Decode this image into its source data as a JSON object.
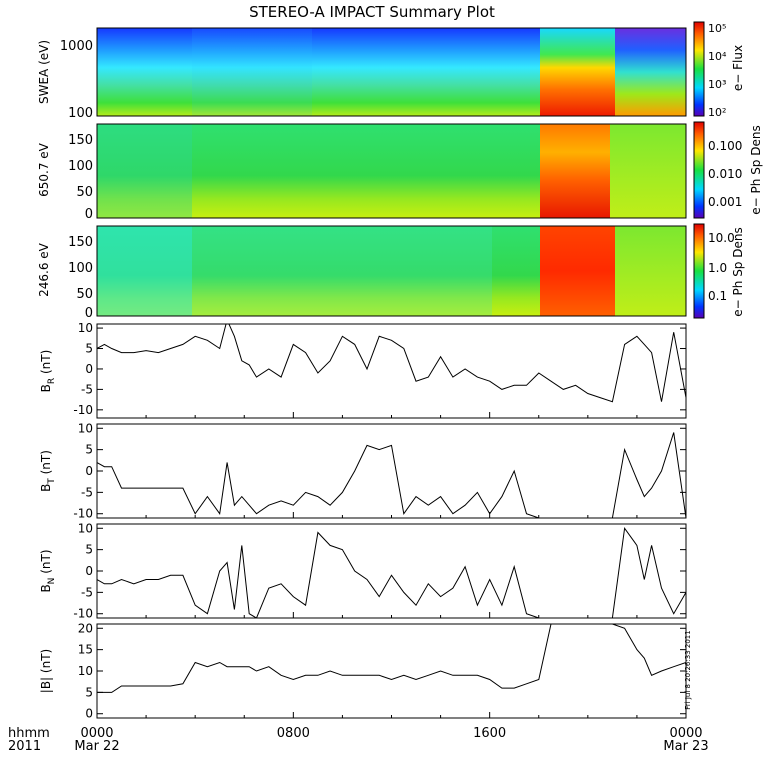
{
  "title": "STEREO-A IMPACT Summary Plot",
  "stamp": "Fri Jul  8 20:26:33 2011",
  "time_axis": {
    "prefix_top": "hhmm",
    "prefix_bottom": "2011",
    "ticks": [
      {
        "label": "0000",
        "sub": "Mar 22",
        "hour": 0
      },
      {
        "label": "0800",
        "sub": "",
        "hour": 8
      },
      {
        "label": "1600",
        "sub": "",
        "hour": 16
      },
      {
        "label": "0000",
        "sub": "Mar 23",
        "hour": 24
      }
    ]
  },
  "spectrograms": [
    {
      "ylabel": "SWEA (eV)",
      "ticks": [
        "1000",
        "100"
      ],
      "cbar_label": "e− Flux",
      "cbar_ticks": [
        "10⁵",
        "10⁴",
        "10³",
        "10²"
      ]
    },
    {
      "ylabel": "650.7 eV",
      "ticks": [
        "150",
        "100",
        "50",
        "0"
      ],
      "cbar_label": "e− Ph Sp Dens",
      "cbar_ticks": [
        "0.100",
        "0.010",
        "0.001"
      ]
    },
    {
      "ylabel": "246.6 eV",
      "ticks": [
        "150",
        "100",
        "50",
        "0"
      ],
      "cbar_label": "e− Ph Sp Dens",
      "cbar_ticks": [
        "10.0",
        "1.0",
        "0.1"
      ]
    }
  ],
  "colors": {
    "line": "#000000",
    "frame": "#000000"
  },
  "chart_data": [
    {
      "type": "line",
      "xlabel": "",
      "ylabel": "B_R (nT)",
      "ylim": [
        -12,
        11
      ],
      "yticks": [
        10,
        5,
        0,
        -5,
        -10
      ],
      "x": [
        0,
        0.3,
        0.6,
        1.0,
        1.5,
        2,
        2.5,
        3,
        3.5,
        4,
        4.5,
        5,
        5.3,
        5.6,
        5.9,
        6.2,
        6.5,
        7,
        7.5,
        8,
        8.5,
        9,
        9.5,
        10,
        10.5,
        11,
        11.5,
        12,
        12.5,
        13,
        13.5,
        14,
        14.5,
        15,
        15.5,
        16,
        16.5,
        17,
        17.5,
        18,
        18.5,
        19,
        19.5,
        20,
        20.5,
        21,
        21.5,
        22,
        22.3,
        22.6,
        23,
        23.5,
        24
      ],
      "series": [
        {
          "values": [
            5,
            6,
            5,
            4,
            4,
            4.5,
            4,
            5,
            6,
            8,
            7,
            5,
            12,
            8,
            2,
            1,
            -2,
            0,
            -2,
            6,
            4,
            -1,
            2,
            8,
            6,
            0,
            8,
            7,
            5,
            -3,
            -2,
            3,
            -2,
            0,
            -2,
            -3,
            -5,
            -4,
            -4,
            -1,
            -3,
            -5,
            -4,
            -6,
            -7,
            -8,
            6,
            8,
            6,
            4,
            -8,
            9,
            -7
          ]
        }
      ]
    },
    {
      "type": "line",
      "xlabel": "",
      "ylabel": "B_T (nT)",
      "ylim": [
        -11,
        11
      ],
      "yticks": [
        10,
        5,
        0,
        -5,
        -10
      ],
      "x": [
        0,
        0.3,
        0.6,
        1.0,
        1.5,
        2,
        2.5,
        3,
        3.5,
        4,
        4.5,
        5,
        5.3,
        5.6,
        5.9,
        6.2,
        6.5,
        7,
        7.5,
        8,
        8.5,
        9,
        9.5,
        10,
        10.5,
        11,
        11.5,
        12,
        12.5,
        13,
        13.5,
        14,
        14.5,
        15,
        15.5,
        16,
        16.5,
        17,
        17.5,
        18,
        18.5,
        19,
        19.5,
        20,
        20.5,
        21,
        21.5,
        22,
        22.3,
        22.6,
        23,
        23.5,
        24
      ],
      "series": [
        {
          "values": [
            2,
            1,
            1,
            -4,
            -4,
            -4,
            -4,
            -4,
            -4,
            -10,
            -6,
            -10,
            2,
            -8,
            -6,
            -8,
            -10,
            -8,
            -7,
            -8,
            -5,
            -6,
            -8,
            -5,
            0,
            6,
            5,
            6,
            -10,
            -6,
            -8,
            -6,
            -10,
            -8,
            -5,
            -10,
            -6,
            0,
            -10,
            -11,
            -11,
            -11,
            -11,
            -11,
            -11,
            -11,
            5,
            -2,
            -6,
            -4,
            0,
            9,
            -11
          ]
        }
      ]
    },
    {
      "type": "line",
      "xlabel": "",
      "ylabel": "B_N (nT)",
      "ylim": [
        -11,
        11
      ],
      "yticks": [
        10,
        5,
        0,
        -5,
        -10
      ],
      "x": [
        0,
        0.3,
        0.6,
        1.0,
        1.5,
        2,
        2.5,
        3,
        3.5,
        4,
        4.5,
        5,
        5.3,
        5.6,
        5.9,
        6.2,
        6.5,
        7,
        7.5,
        8,
        8.5,
        9,
        9.5,
        10,
        10.5,
        11,
        11.5,
        12,
        12.5,
        13,
        13.5,
        14,
        14.5,
        15,
        15.5,
        16,
        16.5,
        17,
        17.5,
        18,
        18.5,
        19,
        19.5,
        20,
        20.5,
        21,
        21.5,
        22,
        22.3,
        22.6,
        23,
        23.5,
        24
      ],
      "series": [
        {
          "values": [
            -2,
            -3,
            -3,
            -2,
            -3,
            -2,
            -2,
            -1,
            -1,
            -8,
            -10,
            0,
            2,
            -9,
            6,
            -10,
            -11,
            -4,
            -3,
            -6,
            -8,
            9,
            6,
            5,
            0,
            -2,
            -6,
            -1,
            -5,
            -8,
            -3,
            -6,
            -4,
            1,
            -8,
            -2,
            -8,
            1,
            -10,
            -11,
            -11,
            -11,
            -11,
            -11,
            -11,
            -11,
            10,
            6,
            -2,
            6,
            -4,
            -10,
            -5
          ]
        }
      ]
    },
    {
      "type": "line",
      "xlabel": "",
      "ylabel": "|B| (nT)",
      "ylim": [
        -1,
        21
      ],
      "yticks": [
        20,
        15,
        10,
        5,
        0
      ],
      "x": [
        0,
        0.3,
        0.6,
        1.0,
        1.5,
        2,
        2.5,
        3,
        3.5,
        4,
        4.5,
        5,
        5.3,
        5.6,
        5.9,
        6.2,
        6.5,
        7,
        7.5,
        8,
        8.5,
        9,
        9.5,
        10,
        10.5,
        11,
        11.5,
        12,
        12.5,
        13,
        13.5,
        14,
        14.5,
        15,
        15.5,
        16,
        16.5,
        17,
        17.5,
        18,
        18.5,
        19,
        19.5,
        20,
        20.5,
        21,
        21.5,
        22,
        22.3,
        22.6,
        23,
        23.5,
        24
      ],
      "series": [
        {
          "values": [
            5,
            5,
            5,
            6.5,
            6.5,
            6.5,
            6.5,
            6.5,
            7,
            12,
            11,
            12,
            11,
            11,
            11,
            11,
            10,
            11,
            9,
            8,
            9,
            9,
            10,
            9,
            9,
            9,
            9,
            8,
            9,
            8,
            9,
            10,
            9,
            9,
            9,
            8,
            6,
            6,
            7,
            8,
            21,
            21,
            21,
            21,
            21,
            21,
            20,
            15,
            13,
            9,
            10,
            11,
            12
          ]
        }
      ]
    }
  ]
}
